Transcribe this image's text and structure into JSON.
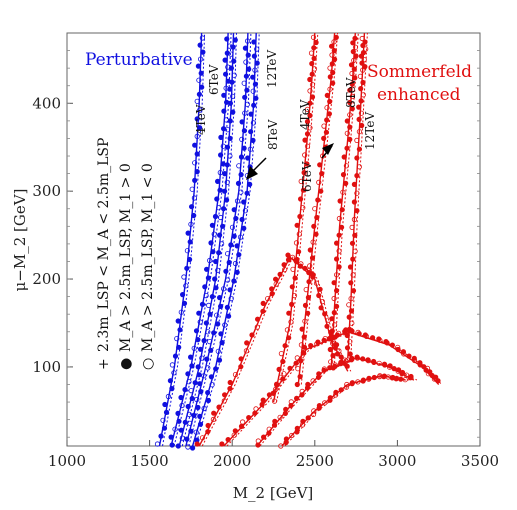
{
  "chart_data": {
    "type": "scatter",
    "title": "",
    "xlabel": "M_2 [GeV]",
    "ylabel": "μ−M_2 [GeV]",
    "xlim": [
      1000,
      3500
    ],
    "ylim": [
      10,
      480
    ],
    "x_ticks": [
      "1000",
      "1500",
      "2000",
      "2500",
      "3000",
      "3500"
    ],
    "y_ticks": [
      "100",
      "200",
      "300",
      "400"
    ],
    "grid": false,
    "region_labels": [
      {
        "text": "Perturbative",
        "color": "#1010e0"
      },
      {
        "text": "Sommerfeld",
        "color": "#e01010"
      },
      {
        "text": "enhanced",
        "color": "#e01010"
      }
    ],
    "curve_labels_blue": [
      "4TeV",
      "6TeV",
      "12TeV",
      "8TeV"
    ],
    "curve_labels_red": [
      "4TeV",
      "8TeV",
      "12TeV",
      "6TeV"
    ],
    "legend": [
      {
        "marker": "+",
        "text": "2.3m_LSP < M_A < 2.5m_LSP"
      },
      {
        "marker": "●",
        "text": "M_A > 2.5m_LSP, M_1 > 0"
      },
      {
        "marker": "○",
        "text": "M_A > 2.5m_LSP, M_1 < 0"
      }
    ],
    "series": [
      {
        "family": "perturbative",
        "color": "#1010e0",
        "x": [
          1560,
          1650,
          1720,
          1770,
          1800,
          1815
        ],
        "y": [
          10,
          100,
          200,
          300,
          400,
          480
        ]
      },
      {
        "family": "perturbative",
        "color": "#1010e0",
        "x": [
          1630,
          1750,
          1850,
          1920,
          1960,
          1975
        ],
        "y": [
          10,
          100,
          200,
          300,
          400,
          480
        ]
      },
      {
        "family": "perturbative",
        "color": "#1010e0",
        "x": [
          1680,
          1800,
          1900,
          1960,
          1995,
          2008
        ],
        "y": [
          10,
          100,
          200,
          300,
          400,
          480
        ]
      },
      {
        "family": "perturbative",
        "color": "#1010e0",
        "x": [
          1720,
          1840,
          1960,
          2040,
          2080,
          2095
        ],
        "y": [
          10,
          100,
          200,
          300,
          400,
          480
        ]
      },
      {
        "family": "perturbative",
        "color": "#1010e0",
        "x": [
          1760,
          1900,
          2010,
          2090,
          2130,
          2145
        ],
        "y": [
          10,
          100,
          200,
          300,
          400,
          480
        ]
      },
      {
        "family": "sommerfeld",
        "color": "#e01010",
        "x": [
          1800,
          2000,
          2200,
          2350,
          2500,
          2600,
          2700
        ],
        "y": [
          10,
          80,
          170,
          225,
          200,
          130,
          95
        ]
      },
      {
        "family": "sommerfeld",
        "color": "#e01010",
        "x": [
          2250,
          2350,
          2400,
          2450,
          2480,
          2500
        ],
        "y": [
          60,
          150,
          250,
          350,
          420,
          480
        ]
      },
      {
        "family": "sommerfeld",
        "color": "#e01010",
        "x": [
          2400,
          2450,
          2500,
          2560,
          2600,
          2620
        ],
        "y": [
          80,
          170,
          260,
          360,
          430,
          480
        ]
      },
      {
        "family": "sommerfeld",
        "color": "#e01010",
        "x": [
          2600,
          2620,
          2650,
          2700,
          2730,
          2745
        ],
        "y": [
          100,
          170,
          260,
          360,
          430,
          480
        ]
      },
      {
        "family": "sommerfeld",
        "color": "#e01010",
        "x": [
          2700,
          2720,
          2740,
          2770,
          2790,
          2800
        ],
        "y": [
          110,
          180,
          270,
          370,
          440,
          480
        ]
      },
      {
        "family": "sommerfeld",
        "color": "#e01010",
        "x": [
          1950,
          2200,
          2450,
          2700,
          2950,
          3150,
          3250
        ],
        "y": [
          10,
          60,
          120,
          140,
          125,
          100,
          80
        ]
      },
      {
        "family": "sommerfeld",
        "color": "#e01010",
        "x": [
          2150,
          2350,
          2550,
          2750,
          2950,
          3100
        ],
        "y": [
          10,
          55,
          95,
          110,
          100,
          85
        ]
      },
      {
        "family": "sommerfeld",
        "color": "#e01010",
        "x": [
          2300,
          2500,
          2700,
          2900,
          3050
        ],
        "y": [
          10,
          50,
          80,
          90,
          85
        ]
      }
    ]
  }
}
